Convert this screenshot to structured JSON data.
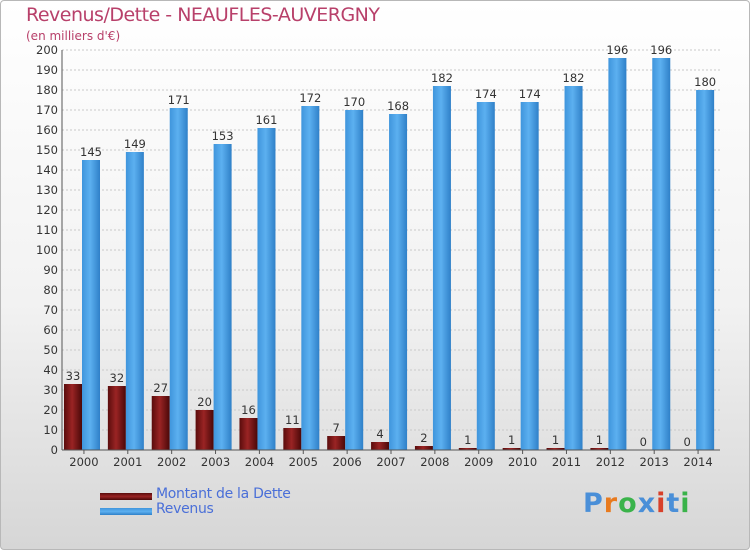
{
  "header": {
    "title": "Revenus/Dette - NEAUFLES-AUVERGNY",
    "subtitle": "(en milliers d'€)"
  },
  "legend": [
    {
      "label": "Montant de la Dette",
      "color": "#7a1414"
    },
    {
      "label": "Revenus",
      "color": "#4aa3e8"
    }
  ],
  "logo": {
    "text": "Proxiti",
    "colors": [
      "#4a8fd8",
      "#e87a1e",
      "#3ab34a",
      "#4a8fd8",
      "#d8402a",
      "#4a8fd8",
      "#3ab34a"
    ]
  },
  "chart_data": {
    "type": "bar",
    "categories": [
      "2000",
      "2001",
      "2002",
      "2003",
      "2004",
      "2005",
      "2006",
      "2007",
      "2008",
      "2009",
      "2010",
      "2011",
      "2012",
      "2013",
      "2014"
    ],
    "series": [
      {
        "name": "Montant de la Dette",
        "values": [
          33,
          32,
          27,
          20,
          16,
          11,
          7,
          4,
          2,
          1,
          1,
          1,
          1,
          0,
          0
        ],
        "color": "#7a1414"
      },
      {
        "name": "Revenus",
        "values": [
          145,
          149,
          171,
          153,
          161,
          172,
          170,
          168,
          182,
          174,
          174,
          182,
          196,
          196,
          180
        ],
        "color": "#4aa3e8"
      }
    ],
    "title": "Revenus/Dette - NEAUFLES-AUVERGNY",
    "ylabel": "(en milliers d'€)",
    "ylim": [
      0,
      200
    ],
    "yticks": [
      0,
      10,
      20,
      30,
      40,
      50,
      60,
      70,
      80,
      90,
      100,
      110,
      120,
      130,
      140,
      150,
      160,
      170,
      180,
      190,
      200
    ],
    "grid": true,
    "legend_position": "bottom-left"
  }
}
